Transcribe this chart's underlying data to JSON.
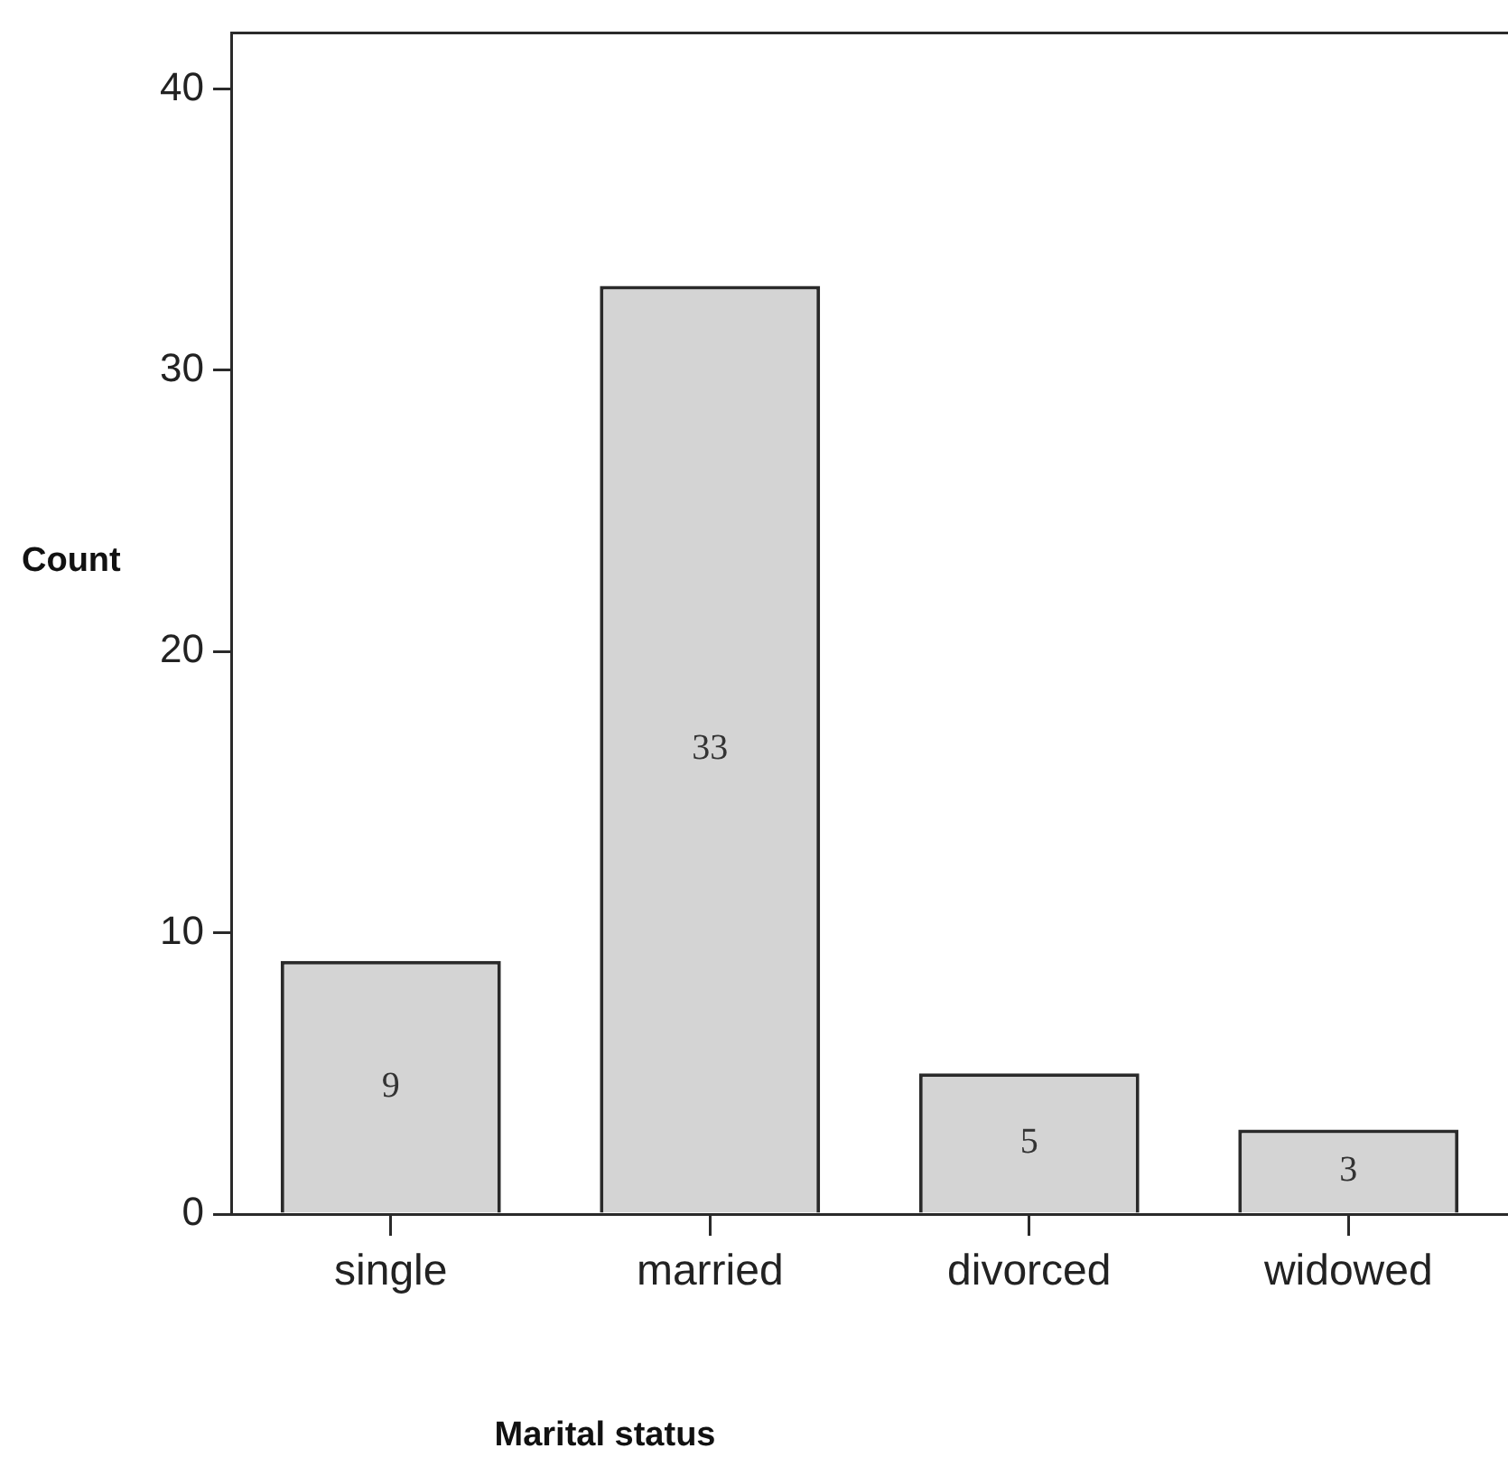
{
  "chart_data": {
    "type": "bar",
    "xlabel": "Marital status",
    "ylabel": "Count",
    "categories": [
      "single",
      "married",
      "divorced",
      "widowed"
    ],
    "values": [
      9,
      33,
      5,
      3
    ],
    "color": "#d4d4d4",
    "ylim": [
      0,
      42
    ],
    "yticks": [
      0,
      10,
      20,
      30,
      40
    ],
    "data_labels": true
  }
}
